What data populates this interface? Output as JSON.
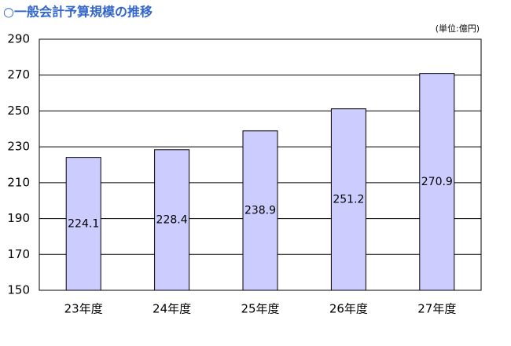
{
  "chart_data": {
    "type": "bar",
    "title": "○一般会計予算規模の推移",
    "unit": "(単位:億円)",
    "categories": [
      "23年度",
      "24年度",
      "25年度",
      "26年度",
      "27年度"
    ],
    "values": [
      224.1,
      228.4,
      238.9,
      251.2,
      270.9
    ],
    "color": "#ccccff",
    "ylim": [
      150,
      290
    ],
    "yticks": [
      150,
      170,
      190,
      210,
      230,
      250,
      270,
      290
    ],
    "grid": true
  }
}
